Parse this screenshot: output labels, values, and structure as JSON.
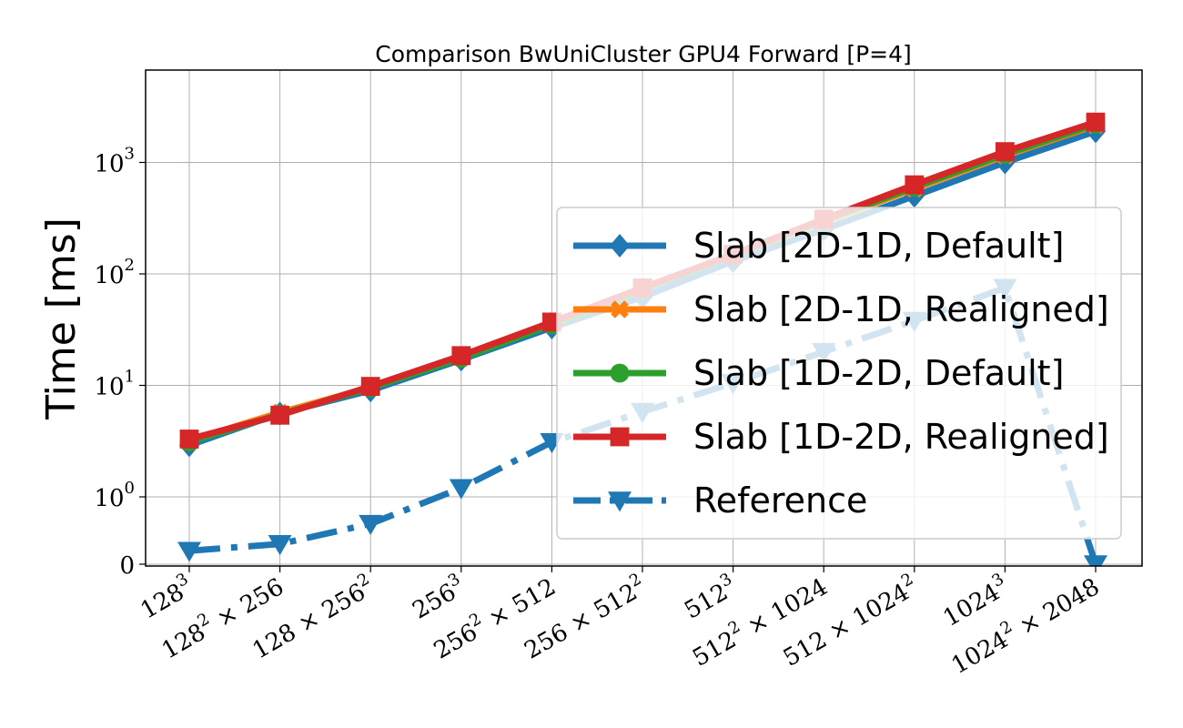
{
  "chart_data": {
    "type": "line",
    "title": "Comparison BwUniCluster GPU4 Forward [P=4]",
    "xlabel": "",
    "ylabel": "Time [ms]",
    "yscale": "symlog",
    "grid": true,
    "legend_position": "right",
    "categories": [
      "128^3",
      "128^2 × 256",
      "128 × 256^2",
      "256^3",
      "256^2 × 512",
      "256 × 512^2",
      "512^3",
      "512^2 × 1024",
      "512 × 1024^2",
      "1024^3",
      "1024^2 × 2048"
    ],
    "category_labels": [
      {
        "base": "128",
        "exp": "3",
        "rest": ""
      },
      {
        "base": "128",
        "exp": "2",
        "rest": " × 256"
      },
      {
        "base": "128 × 256",
        "exp": "2",
        "rest": ""
      },
      {
        "base": "256",
        "exp": "3",
        "rest": ""
      },
      {
        "base": "256",
        "exp": "2",
        "rest": " × 512"
      },
      {
        "base": "256 × 512",
        "exp": "2",
        "rest": ""
      },
      {
        "base": "512",
        "exp": "3",
        "rest": ""
      },
      {
        "base": "512",
        "exp": "2",
        "rest": " × 1024"
      },
      {
        "base": "512 × 1024",
        "exp": "2",
        "rest": ""
      },
      {
        "base": "1024",
        "exp": "3",
        "rest": ""
      },
      {
        "base": "1024",
        "exp": "2",
        "rest": " × 2048"
      }
    ],
    "y_ticks": [
      {
        "value": 0,
        "base": "0",
        "exp": ""
      },
      {
        "value": 1,
        "base": "10",
        "exp": "0"
      },
      {
        "value": 10,
        "base": "10",
        "exp": "1"
      },
      {
        "value": 100,
        "base": "10",
        "exp": "2"
      },
      {
        "value": 1000,
        "base": "10",
        "exp": "3"
      }
    ],
    "series": [
      {
        "name": "Slab [2D-1D, Default]",
        "color": "#1f77b4",
        "marker": "diamond",
        "dash": "solid",
        "values": [
          2.9,
          5.6,
          9.0,
          17.0,
          33.0,
          62.0,
          130.0,
          250.0,
          500.0,
          1000.0,
          1900.0
        ]
      },
      {
        "name": "Slab [2D-1D, Realigned]",
        "color": "#ff7f0e",
        "marker": "x",
        "dash": "solid",
        "values": [
          3.2,
          5.7,
          9.6,
          18.0,
          36.0,
          72.0,
          148.0,
          290.0,
          580.0,
          1150.0,
          2150.0
        ]
      },
      {
        "name": "Slab [1D-2D, Default]",
        "color": "#2ca02c",
        "marker": "circle",
        "dash": "solid",
        "values": [
          3.1,
          5.5,
          9.5,
          17.5,
          35.0,
          72.0,
          148.0,
          300.0,
          600.0,
          1180.0,
          2200.0
        ]
      },
      {
        "name": "Slab [1D-2D, Realigned]",
        "color": "#d62728",
        "marker": "square",
        "dash": "solid",
        "values": [
          3.3,
          5.4,
          9.8,
          18.5,
          37.0,
          75.0,
          150.0,
          310.0,
          630.0,
          1250.0,
          2300.0
        ]
      },
      {
        "name": "Reference",
        "color": "#1f77b4",
        "marker": "triangle-down",
        "dash": "dashdot",
        "values": [
          0.2,
          0.3,
          0.6,
          1.2,
          3.1,
          5.8,
          10.5,
          20.0,
          38.0,
          75.0,
          0
        ]
      }
    ]
  }
}
